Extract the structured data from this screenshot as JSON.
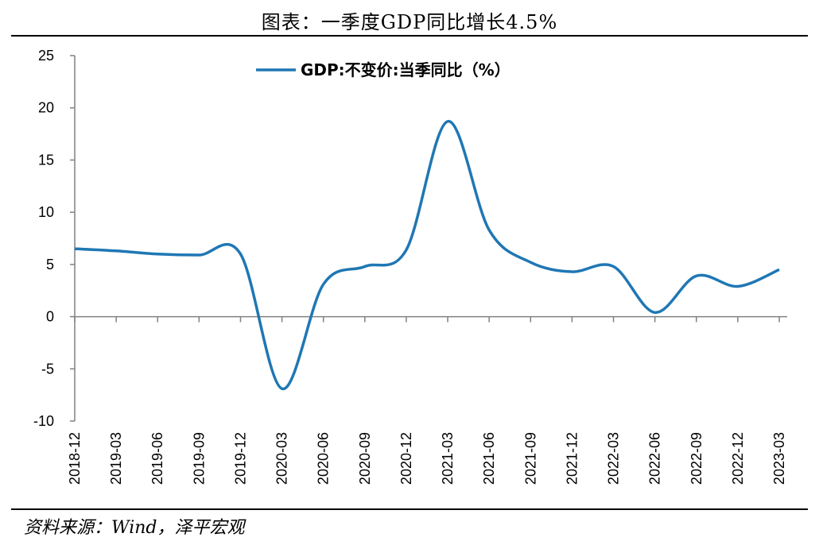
{
  "header": {
    "title": "图表：一季度GDP同比增长4.5%"
  },
  "footer": {
    "source": "资料来源：Wind，泽平宏观"
  },
  "colors": {
    "line": "#1f77b4",
    "axis": "#808080",
    "text": "#000000"
  },
  "chart_data": {
    "type": "line",
    "title": "图表：一季度GDP同比增长4.5%",
    "xlabel": "",
    "ylabel": "",
    "ylim": [
      -10,
      25
    ],
    "yticks": [
      -10,
      -5,
      0,
      5,
      10,
      15,
      20,
      25
    ],
    "grid": false,
    "legend_position": "top-center",
    "categories": [
      "2018-12",
      "2019-03",
      "2019-06",
      "2019-09",
      "2019-12",
      "2020-03",
      "2020-06",
      "2020-09",
      "2020-12",
      "2021-03",
      "2021-06",
      "2021-09",
      "2021-12",
      "2022-03",
      "2022-06",
      "2022-09",
      "2022-12",
      "2023-03"
    ],
    "series": [
      {
        "name": "GDP:不变价:当季同比（%）",
        "values": [
          6.5,
          6.3,
          6.0,
          5.9,
          6.0,
          -6.9,
          3.1,
          4.8,
          6.4,
          18.7,
          8.3,
          5.2,
          4.3,
          4.8,
          0.4,
          3.9,
          2.9,
          4.5
        ]
      }
    ]
  }
}
